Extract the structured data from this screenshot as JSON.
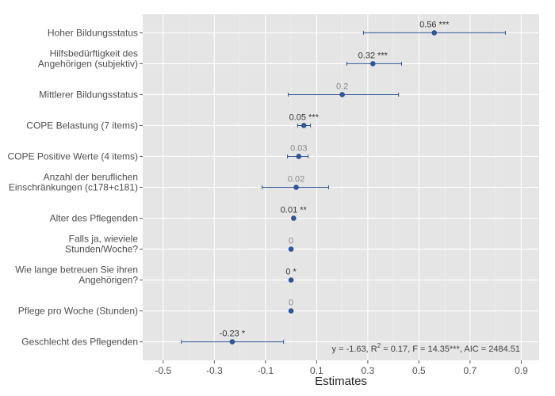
{
  "chart_data": {
    "type": "forest",
    "categories": [
      [
        "Hoher Bildungsstatus"
      ],
      [
        "Hilfsbedürftigkeit des",
        "Angehörigen (subjektiv)"
      ],
      [
        "Mittlerer Bildungsstatus"
      ],
      [
        "COPE Belastung (7 items)"
      ],
      [
        "COPE Positive Werte (4 items)"
      ],
      [
        "Anzahl der beruflichen",
        "Einschränkungen (c178+c181)"
      ],
      [
        "Alter des Pflegenden"
      ],
      [
        "Falls ja, wieviele",
        "Stunden/Woche?"
      ],
      [
        "Wie lange betreuen Sie ihren",
        "Angehörigen?"
      ],
      [
        "Pflege pro Woche (Stunden)"
      ],
      [
        "Geschlecht des Pflegenden"
      ]
    ],
    "values": [
      0.56,
      0.32,
      0.2,
      0.05,
      0.03,
      0.02,
      0.01,
      0,
      0,
      0,
      -0.23
    ],
    "lower": [
      0.283,
      0.218,
      -0.011,
      0.026,
      -0.014,
      -0.113,
      0.007,
      -0.002,
      -0.002,
      -0.002,
      -0.429
    ],
    "upper": [
      0.838,
      0.432,
      0.42,
      0.076,
      0.067,
      0.147,
      0.013,
      0.002,
      0.002,
      0.002,
      -0.029
    ],
    "value_labels": [
      "0.56 ***",
      "0.32 ***",
      "0.2",
      "0.05 ***",
      "0.03",
      "0.02",
      "0.01 **",
      "0",
      "0 *",
      "0",
      "-0.23 *"
    ],
    "label_colors": [
      "#333333",
      "#333333",
      "#888888",
      "#333333",
      "#888888",
      "#888888",
      "#333333",
      "#888888",
      "#333333",
      "#888888",
      "#333333"
    ],
    "color": "#2f5597",
    "x_label": "Estimates",
    "xlim": [
      -0.58,
      0.97
    ],
    "xticks": [
      -0.5,
      -0.3,
      -0.1,
      0.1,
      0.3,
      0.5,
      0.7,
      0.9
    ],
    "grid": true,
    "annotation": [
      "y = -1.63,  R",
      "2",
      " = 0.17,  F = 14.35***,  AIC = 2484.51"
    ]
  }
}
